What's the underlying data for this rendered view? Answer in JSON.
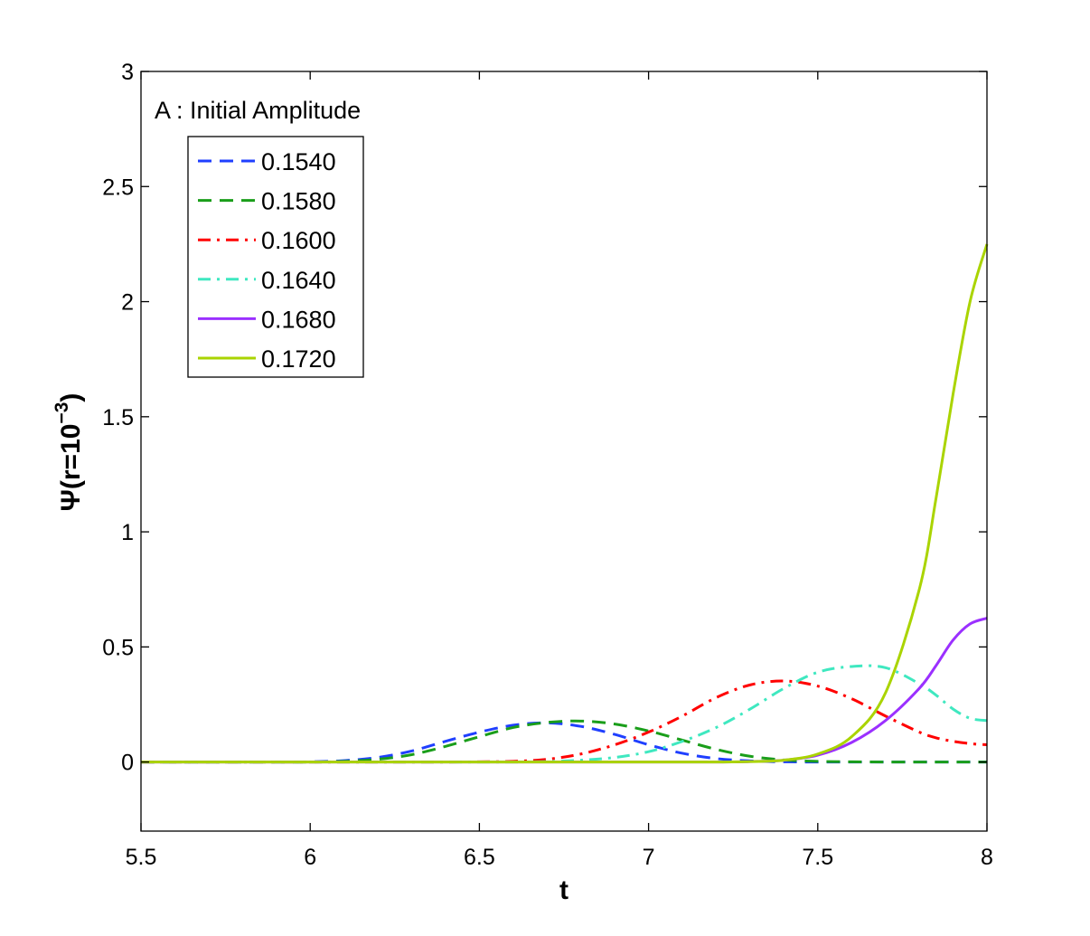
{
  "chart_data": {
    "type": "line",
    "xlabel": "t",
    "ylabel": "Ψ(r=10",
    "ylabel_sup": "−3",
    "ylabel_close": ")",
    "annotation": "A : Initial Amplitude",
    "xlim": [
      5.5,
      8
    ],
    "ylim": [
      -0.3,
      3
    ],
    "xticks": [
      "5.5",
      "6",
      "6.5",
      "7",
      "7.5",
      "8"
    ],
    "yticks": [
      "0",
      "0.5",
      "1",
      "1.5",
      "2",
      "2.5",
      "3"
    ],
    "grid": false,
    "legend_position": "upper-left",
    "x": [
      5.5,
      5.6,
      5.7,
      5.8,
      5.9,
      6.0,
      6.1,
      6.2,
      6.3,
      6.4,
      6.5,
      6.6,
      6.7,
      6.8,
      6.9,
      7.0,
      7.1,
      7.2,
      7.3,
      7.4,
      7.5,
      7.6,
      7.7,
      7.8,
      7.85,
      7.9,
      7.95,
      8.0
    ],
    "series": [
      {
        "name": "0.1540",
        "color": "#1f3fff",
        "dash": "dash",
        "values": [
          0,
          0,
          0,
          0,
          0,
          0.001,
          0.006,
          0.02,
          0.048,
          0.09,
          0.13,
          0.16,
          0.17,
          0.155,
          0.12,
          0.075,
          0.038,
          0.015,
          0.005,
          0.001,
          0,
          0,
          0,
          0,
          0,
          0,
          0,
          0
        ]
      },
      {
        "name": "0.1580",
        "color": "#1a9e1a",
        "dash": "dash",
        "values": [
          0,
          0,
          0,
          0,
          0,
          0,
          0.003,
          0.012,
          0.032,
          0.068,
          0.11,
          0.15,
          0.172,
          0.178,
          0.165,
          0.135,
          0.095,
          0.055,
          0.025,
          0.009,
          0.003,
          0.001,
          0,
          0,
          0,
          0,
          0,
          0
        ]
      },
      {
        "name": "0.1600",
        "color": "#ff0000",
        "dash": "dashdot",
        "values": [
          0,
          0,
          0,
          0,
          0,
          0,
          0,
          0,
          0,
          0,
          0.001,
          0.003,
          0.012,
          0.035,
          0.075,
          0.13,
          0.2,
          0.28,
          0.335,
          0.352,
          0.33,
          0.275,
          0.2,
          0.13,
          0.105,
          0.09,
          0.08,
          0.075
        ]
      },
      {
        "name": "0.1640",
        "color": "#3fe8c0",
        "dash": "dashdot",
        "values": [
          0,
          0,
          0,
          0,
          0,
          0,
          0,
          0,
          0,
          0,
          0,
          0,
          0.002,
          0.008,
          0.02,
          0.045,
          0.09,
          0.15,
          0.23,
          0.32,
          0.39,
          0.415,
          0.41,
          0.34,
          0.29,
          0.23,
          0.19,
          0.18
        ]
      },
      {
        "name": "0.1680",
        "color": "#9b30ff",
        "dash": "solid",
        "values": [
          0,
          0,
          0,
          0,
          0,
          0,
          0,
          0,
          0,
          0,
          0,
          0,
          0,
          0,
          0,
          0,
          0,
          0,
          0.002,
          0.008,
          0.03,
          0.085,
          0.18,
          0.32,
          0.42,
          0.53,
          0.6,
          0.625
        ]
      },
      {
        "name": "0.1720",
        "color": "#aad400",
        "dash": "solid",
        "values": [
          0,
          0,
          0,
          0,
          0,
          0,
          0,
          0,
          0,
          0,
          0,
          0,
          0,
          0,
          0,
          0,
          0,
          0,
          0.002,
          0.008,
          0.035,
          0.11,
          0.3,
          0.75,
          1.15,
          1.6,
          2.0,
          2.25
        ]
      }
    ]
  }
}
